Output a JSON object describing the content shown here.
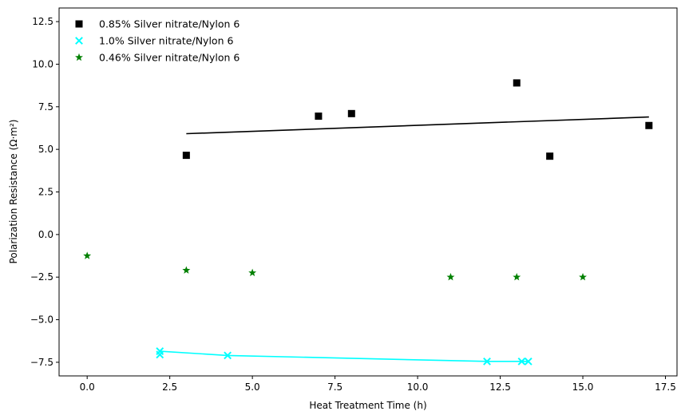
{
  "chart_data": {
    "type": "scatter",
    "title": "",
    "xlabel": "Heat Treatment Time (h)",
    "ylabel": "Polarization Resistance (Ω·m²)",
    "xlim": [
      -0.85,
      17.85
    ],
    "ylim": [
      -8.3,
      13.3
    ],
    "xticks": [
      0.0,
      2.5,
      5.0,
      7.5,
      10.0,
      12.5,
      15.0,
      17.5
    ],
    "xtick_labels": [
      "0.0",
      "2.5",
      "5.0",
      "7.5",
      "10.0",
      "12.5",
      "15.0",
      "17.5"
    ],
    "yticks": [
      -7.5,
      -5.0,
      -2.5,
      0.0,
      2.5,
      5.0,
      7.5,
      10.0,
      12.5
    ],
    "ytick_labels": [
      "−7.5",
      "−5.0",
      "−2.5",
      "0.0",
      "2.5",
      "5.0",
      "7.5",
      "10.0",
      "12.5"
    ],
    "grid": false,
    "legend_position": "top-left",
    "series": [
      {
        "name": "0.85% Silver nitrate/Nylon 6",
        "marker": "square",
        "color": "#000000",
        "points": [
          [
            3,
            4.65
          ],
          [
            7,
            6.95
          ],
          [
            8,
            7.1
          ],
          [
            13,
            8.9
          ],
          [
            14,
            4.6
          ],
          [
            17,
            6.4
          ]
        ],
        "fit_line": [
          [
            3,
            5.92
          ],
          [
            17,
            6.9
          ]
        ]
      },
      {
        "name": "1.0% Silver nitrate/Nylon 6",
        "marker": "x",
        "color": "#00ffff",
        "points": [
          [
            2.2,
            -6.85
          ],
          [
            2.2,
            -7.05
          ],
          [
            4.25,
            -7.1
          ],
          [
            12.1,
            -7.45
          ],
          [
            13.15,
            -7.45
          ],
          [
            13.35,
            -7.45
          ]
        ],
        "fit_line": [
          [
            2.2,
            -6.85
          ],
          [
            4.25,
            -7.1
          ],
          [
            12.1,
            -7.45
          ],
          [
            13.35,
            -7.45
          ]
        ]
      },
      {
        "name": "0.46% Silver nitrate/Nylon 6",
        "marker": "star",
        "color": "#008000",
        "points": [
          [
            0,
            -1.25
          ],
          [
            3,
            -2.1
          ],
          [
            5,
            -2.25
          ],
          [
            11,
            -2.5
          ],
          [
            13,
            -2.5
          ],
          [
            15,
            -2.5
          ]
        ]
      }
    ]
  }
}
